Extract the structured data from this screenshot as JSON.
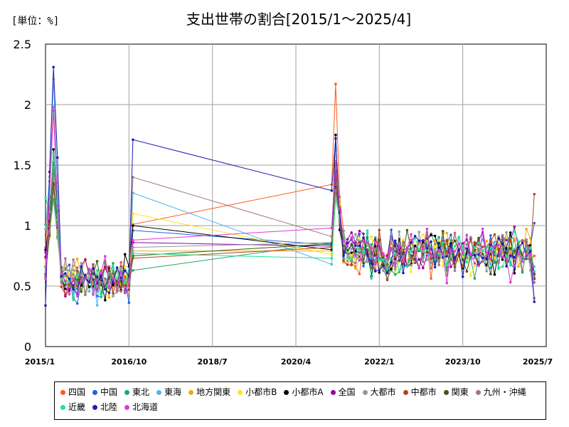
{
  "chart_data": {
    "type": "line",
    "title": "支出世帯の割合[2015/1～2025/4]",
    "unit_label": "[単位：%]",
    "ylim": [
      0,
      2.5
    ],
    "y_ticks": [
      "0",
      "0.5",
      "1",
      "1.5",
      "2",
      "2.5"
    ],
    "xlim": [
      "2015-01",
      "2025-07"
    ],
    "x_ticks": [
      "2015/1",
      "2016/10",
      "2018/7",
      "2020/4",
      "2022/1",
      "2023/10",
      "2025/7"
    ],
    "grid": true,
    "legend_position": "bottom",
    "series": [
      {
        "name": "四国",
        "color": "#ff5a1e",
        "start": 0.82,
        "gap_start": 1.01,
        "gap_end": 1.34,
        "peak": 1.98,
        "peak2": 2.17,
        "end": 0.75,
        "seed": 1
      },
      {
        "name": "中国",
        "color": "#1e64dc",
        "start": 0.78,
        "gap_start": 0.96,
        "gap_end": 0.84,
        "peak": 1.52,
        "peak2": 1.45,
        "end": 1.02,
        "seed": 2
      },
      {
        "name": "東北",
        "color": "#1eaa6e",
        "start": 1.01,
        "gap_start": 0.63,
        "gap_end": 0.86,
        "peak": 1.22,
        "peak2": 1.53,
        "end": 0.62,
        "seed": 3
      },
      {
        "name": "東海",
        "color": "#55b4f0",
        "start": 0.97,
        "gap_start": 1.27,
        "gap_end": 0.68,
        "peak": 2.21,
        "peak2": 1.38,
        "end": 0.66,
        "seed": 4
      },
      {
        "name": "地方関東",
        "color": "#f0aa14",
        "start": 0.66,
        "gap_start": 0.79,
        "gap_end": 0.79,
        "peak": 1.4,
        "peak2": 1.25,
        "end": 0.58,
        "seed": 5
      },
      {
        "name": "小都市B",
        "color": "#ffe61e",
        "start": 0.7,
        "gap_start": 1.1,
        "gap_end": 0.76,
        "peak": 1.3,
        "peak2": 1.33,
        "end": 0.6,
        "seed": 6
      },
      {
        "name": "小都市A",
        "color": "#000000",
        "start": 0.8,
        "gap_start": 1.0,
        "gap_end": 0.8,
        "peak": 1.63,
        "peak2": 1.75,
        "end": 0.56,
        "seed": 7
      },
      {
        "name": "全国",
        "color": "#9600a0",
        "start": 0.74,
        "gap_start": 0.86,
        "gap_end": 0.83,
        "peak": 1.34,
        "peak2": 1.38,
        "end": 0.6,
        "seed": 8
      },
      {
        "name": "大都市",
        "color": "#8c9ba5",
        "start": 0.66,
        "gap_start": 0.82,
        "gap_end": 0.86,
        "peak": 1.3,
        "peak2": 1.3,
        "end": 0.4,
        "seed": 9
      },
      {
        "name": "中都市",
        "color": "#b4461e",
        "start": 0.58,
        "gap_start": 0.73,
        "gap_end": 0.82,
        "peak": 1.45,
        "peak2": 1.4,
        "end": 1.26,
        "seed": 10
      },
      {
        "name": "関東",
        "color": "#3c5a14",
        "start": 0.6,
        "gap_start": 0.75,
        "gap_end": 0.85,
        "peak": 1.35,
        "peak2": 1.32,
        "end": 0.56,
        "seed": 11
      },
      {
        "name": "九州・沖縄",
        "color": "#a07882",
        "start": 0.66,
        "gap_start": 1.4,
        "gap_end": 0.91,
        "peak": 1.48,
        "peak2": 1.29,
        "end": 0.4,
        "seed": 12
      },
      {
        "name": "近畿",
        "color": "#1ee68c",
        "start": 1.23,
        "gap_start": 0.77,
        "gap_end": 0.73,
        "peak": 1.6,
        "peak2": 1.22,
        "end": 0.62,
        "seed": 13
      },
      {
        "name": "北陸",
        "color": "#1e1eb4",
        "start": 0.34,
        "gap_start": 1.71,
        "gap_end": 1.29,
        "peak": 2.31,
        "peak2": 1.72,
        "end": 0.37,
        "seed": 14
      },
      {
        "name": "北海道",
        "color": "#dc3cdc",
        "start": 0.56,
        "gap_start": 0.88,
        "gap_end": 0.98,
        "peak": 1.95,
        "peak2": 1.53,
        "end": 0.53,
        "seed": 15
      }
    ]
  }
}
